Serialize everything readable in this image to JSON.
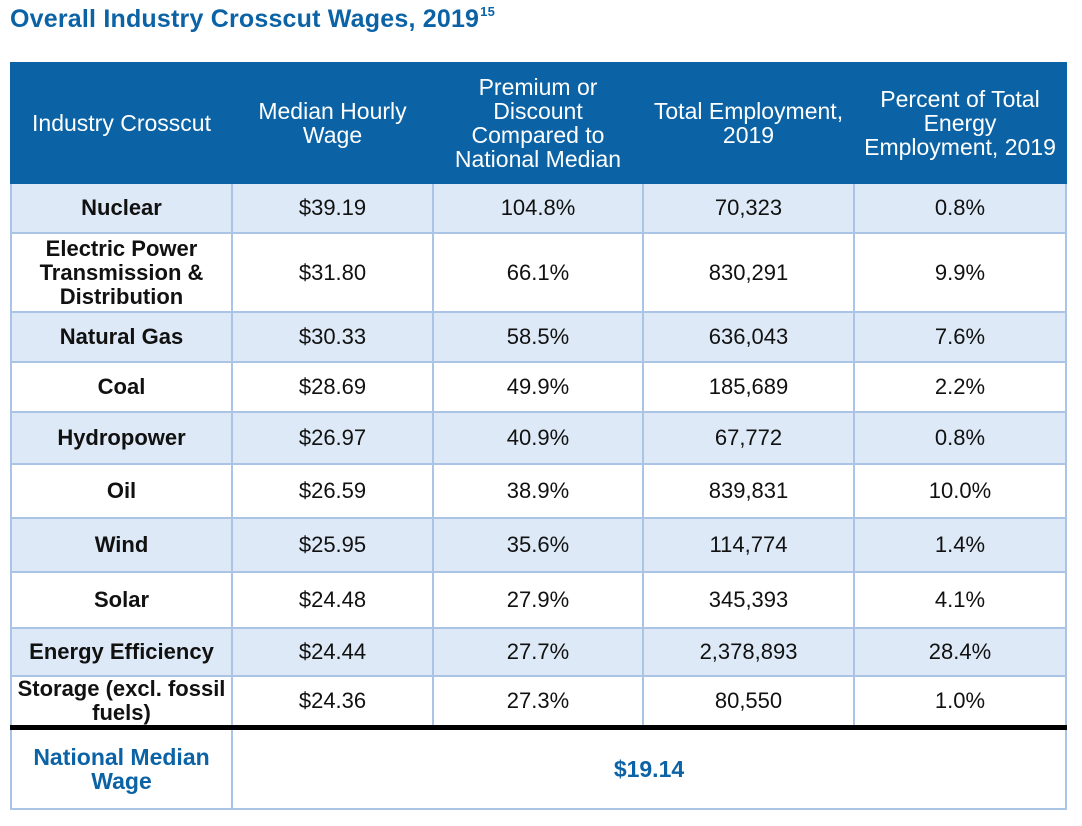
{
  "title": {
    "text": "Overall Industry Crosscut Wages, 2019",
    "footnote": "15"
  },
  "table": {
    "headers": [
      "Industry Crosscut",
      "Median Hourly Wage",
      "Premium or Discount Compared to National Median",
      "Total Employment, 2019",
      "Percent of Total Energy Employment, 2019"
    ],
    "rows": [
      {
        "industry": "Nuclear",
        "wage": "$39.19",
        "premium": "104.8%",
        "employment": "70,323",
        "percent": "0.8%"
      },
      {
        "industry": "Electric Power Transmission & Distribution",
        "wage": "$31.80",
        "premium": "66.1%",
        "employment": "830,291",
        "percent": "9.9%"
      },
      {
        "industry": "Natural Gas",
        "wage": "$30.33",
        "premium": "58.5%",
        "employment": "636,043",
        "percent": "7.6%"
      },
      {
        "industry": "Coal",
        "wage": "$28.69",
        "premium": "49.9%",
        "employment": "185,689",
        "percent": "2.2%"
      },
      {
        "industry": "Hydropower",
        "wage": "$26.97",
        "premium": "40.9%",
        "employment": "67,772",
        "percent": "0.8%"
      },
      {
        "industry": "Oil",
        "wage": "$26.59",
        "premium": "38.9%",
        "employment": "839,831",
        "percent": "10.0%"
      },
      {
        "industry": "Wind",
        "wage": "$25.95",
        "premium": "35.6%",
        "employment": "114,774",
        "percent": "1.4%"
      },
      {
        "industry": "Solar",
        "wage": "$24.48",
        "premium": "27.9%",
        "employment": "345,393",
        "percent": "4.1%"
      },
      {
        "industry": "Energy Efficiency",
        "wage": "$24.44",
        "premium": "27.7%",
        "employment": "2,378,893",
        "percent": "28.4%"
      },
      {
        "industry": "Storage (excl. fossil fuels)",
        "wage": "$24.36",
        "premium": "27.3%",
        "employment": "80,550",
        "percent": "1.0%"
      }
    ],
    "national": {
      "label": "National Median Wage",
      "value": "$19.14"
    }
  },
  "colors": {
    "header_blue": "#0b63a5",
    "row_alt": "#dde9f6",
    "grid": "#a9c4e4",
    "title": "#0b63a5"
  }
}
